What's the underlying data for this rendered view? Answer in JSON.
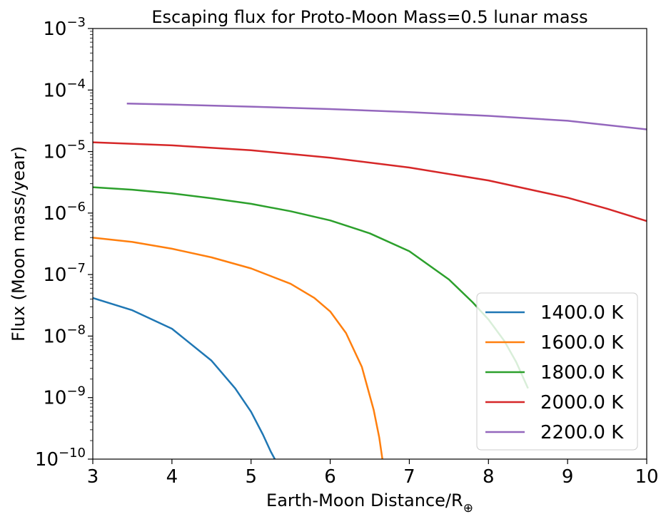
{
  "chart_data": {
    "type": "line",
    "title": "Escaping flux for Proto-Moon Mass=0.5 lunar mass",
    "xlabel": "Earth-Moon Distance/R",
    "xlabel_subscript": "⊕",
    "ylabel": "Flux (Moon mass/year)",
    "xlim": [
      3,
      10
    ],
    "ylim_log10": [
      -10,
      -3
    ],
    "yscale": "log",
    "x_ticks": [
      3,
      4,
      5,
      6,
      7,
      8,
      9,
      10
    ],
    "y_tick_exponents": [
      -10,
      -9,
      -8,
      -7,
      -6,
      -5,
      -4,
      -3
    ],
    "y_tick_base": "10",
    "legend_position": "lower-right",
    "grid": false,
    "series": [
      {
        "name": "1400.0 K",
        "color": "#1f77b4",
        "x": [
          3.0,
          3.5,
          4.0,
          4.5,
          4.8,
          5.0,
          5.15,
          5.25,
          5.3
        ],
        "log10_y": [
          -7.38,
          -7.58,
          -7.88,
          -8.4,
          -8.85,
          -9.23,
          -9.6,
          -9.88,
          -10.0
        ]
      },
      {
        "name": "1600.0 K",
        "color": "#ff7f0e",
        "x": [
          3.0,
          3.5,
          4.0,
          4.5,
          5.0,
          5.5,
          5.8,
          6.0,
          6.2,
          6.4,
          6.55,
          6.62,
          6.66
        ],
        "log10_y": [
          -6.4,
          -6.47,
          -6.58,
          -6.72,
          -6.9,
          -7.15,
          -7.38,
          -7.6,
          -7.95,
          -8.5,
          -9.2,
          -9.65,
          -10.0
        ]
      },
      {
        "name": "1800.0 K",
        "color": "#2ca02c",
        "x": [
          3.0,
          3.5,
          4.0,
          4.5,
          5.0,
          5.5,
          6.0,
          6.5,
          7.0,
          7.5,
          7.8,
          8.0,
          8.2,
          8.35,
          8.5
        ],
        "log10_y": [
          -5.58,
          -5.62,
          -5.68,
          -5.76,
          -5.85,
          -5.97,
          -6.12,
          -6.33,
          -6.62,
          -7.08,
          -7.45,
          -7.73,
          -8.08,
          -8.42,
          -8.85
        ]
      },
      {
        "name": "2000.0 K",
        "color": "#d62728",
        "x": [
          3.0,
          4.0,
          5.0,
          6.0,
          7.0,
          8.0,
          9.0,
          9.5,
          10.0
        ],
        "log10_y": [
          -4.85,
          -4.9,
          -4.98,
          -5.1,
          -5.26,
          -5.47,
          -5.75,
          -5.93,
          -6.13
        ]
      },
      {
        "name": "2200.0 K",
        "color": "#9467bd",
        "x": [
          3.43,
          4.0,
          5.0,
          6.0,
          7.0,
          8.0,
          9.0,
          10.0
        ],
        "log10_y": [
          -4.22,
          -4.235,
          -4.27,
          -4.31,
          -4.36,
          -4.42,
          -4.5,
          -4.64
        ]
      }
    ]
  }
}
